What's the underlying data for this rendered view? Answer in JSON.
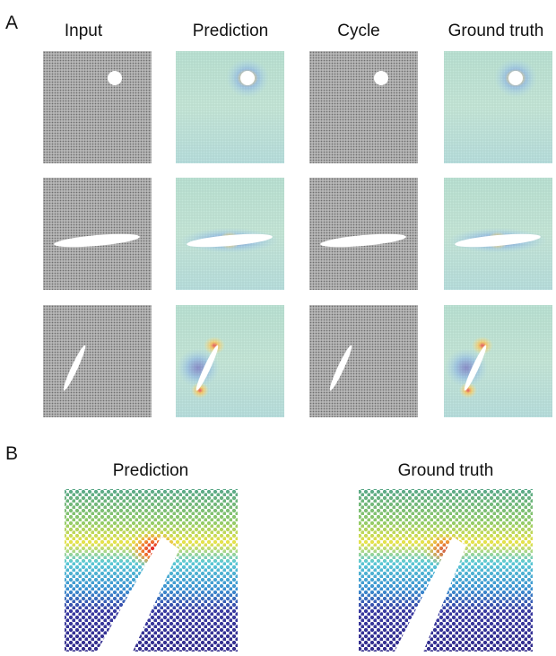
{
  "panel_a": {
    "label": "A",
    "columns": [
      "Input",
      "Prediction",
      "Cycle",
      "Ground truth"
    ]
  },
  "panel_b": {
    "label": "B",
    "columns": [
      "Prediction",
      "Ground truth"
    ]
  }
}
